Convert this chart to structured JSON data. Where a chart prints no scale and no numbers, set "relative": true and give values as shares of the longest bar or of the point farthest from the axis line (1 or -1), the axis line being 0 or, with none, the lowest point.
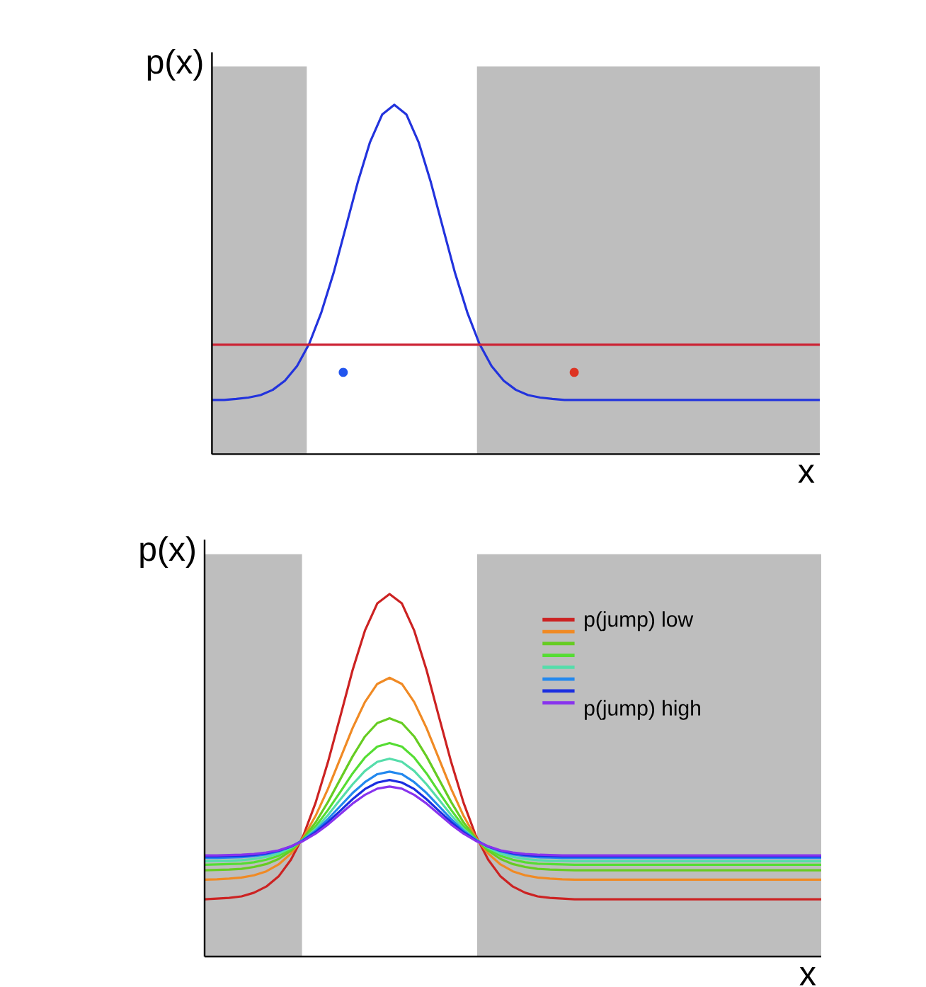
{
  "chart_data": [
    {
      "type": "line",
      "ylabel": "p(x)",
      "xlabel": "x",
      "relative": true,
      "tick_labels": false,
      "categories": [
        null,
        null,
        null,
        null,
        null,
        null,
        null,
        null,
        null,
        null,
        null,
        null,
        null,
        null,
        null,
        null,
        null,
        null,
        null,
        null,
        null,
        null,
        null,
        null,
        null,
        null,
        null,
        null,
        null,
        null,
        null,
        null,
        null,
        null,
        null,
        null,
        null,
        null,
        null,
        null,
        null,
        null,
        null,
        null,
        null,
        null,
        null,
        null,
        null,
        null,
        null
      ],
      "series": [
        {
          "type": "line",
          "color": "#2233dd",
          "values": [
            0.155,
            0.155,
            0.158,
            0.162,
            0.169,
            0.184,
            0.21,
            0.252,
            0.316,
            0.406,
            0.518,
            0.648,
            0.779,
            0.893,
            0.972,
            1,
            0.972,
            0.893,
            0.779,
            0.648,
            0.518,
            0.406,
            0.316,
            0.252,
            0.21,
            0.184,
            0.169,
            0.162,
            0.158,
            0.155,
            0.155,
            0.155,
            0.155,
            0.155,
            0.155,
            0.155,
            0.155,
            0.155,
            0.155,
            0.155,
            0.155,
            0.155,
            0.155,
            0.155,
            0.155,
            0.155,
            0.155,
            0.155,
            0.155,
            0.155,
            0.155
          ]
        },
        {
          "type": "line",
          "color": "#cc2233",
          "values": [
            0.313,
            0.313,
            0.313,
            0.313,
            0.313,
            0.313,
            0.313,
            0.313,
            0.313,
            0.313,
            0.313,
            0.313,
            0.313,
            0.313,
            0.313,
            0.313,
            0.313,
            0.313,
            0.313,
            0.313,
            0.313,
            0.313,
            0.313,
            0.313,
            0.313,
            0.313,
            0.313,
            0.313,
            0.313,
            0.313,
            0.313,
            0.313,
            0.313,
            0.313,
            0.313,
            0.313,
            0.313,
            0.313,
            0.313,
            0.313,
            0.313,
            0.313,
            0.313,
            0.313,
            0.313,
            0.313,
            0.313,
            0.313,
            0.313,
            0.313,
            0.313
          ]
        }
      ]
    },
    {
      "type": "line",
      "ylabel": "p(x)",
      "xlabel": "x",
      "relative": true,
      "tick_labels": false,
      "legend": "top right",
      "categories": [
        null,
        null,
        null,
        null,
        null,
        null,
        null,
        null,
        null,
        null,
        null,
        null,
        null,
        null,
        null,
        null,
        null,
        null,
        null,
        null,
        null,
        null,
        null,
        null,
        null,
        null,
        null,
        null,
        null,
        null,
        null,
        null,
        null,
        null,
        null,
        null,
        null,
        null,
        null,
        null,
        null,
        null,
        null,
        null,
        null,
        null,
        null,
        null,
        null,
        null,
        null
      ],
      "series": [
        {
          "name": "p(jump) low",
          "color": "#cc2222",
          "values": [
            0.158,
            0.16,
            0.162,
            0.166,
            0.176,
            0.193,
            0.221,
            0.267,
            0.333,
            0.424,
            0.536,
            0.662,
            0.79,
            0.899,
            0.974,
            1,
            0.974,
            0.899,
            0.79,
            0.662,
            0.536,
            0.424,
            0.333,
            0.267,
            0.221,
            0.193,
            0.176,
            0.166,
            0.162,
            0.16,
            0.158,
            0.158,
            0.158,
            0.158,
            0.158,
            0.158,
            0.158,
            0.158,
            0.158,
            0.158,
            0.158,
            0.158,
            0.158,
            0.158,
            0.158,
            0.158,
            0.158,
            0.158,
            0.158,
            0.158,
            0.158
          ]
        },
        {
          "color": "#f08a24",
          "values": [
            0.212,
            0.213,
            0.215,
            0.218,
            0.224,
            0.235,
            0.254,
            0.284,
            0.328,
            0.388,
            0.462,
            0.546,
            0.63,
            0.702,
            0.752,
            0.769,
            0.752,
            0.702,
            0.63,
            0.546,
            0.462,
            0.388,
            0.328,
            0.284,
            0.254,
            0.235,
            0.224,
            0.218,
            0.215,
            0.213,
            0.212,
            0.212,
            0.212,
            0.212,
            0.212,
            0.212,
            0.212,
            0.212,
            0.212,
            0.212,
            0.212,
            0.212,
            0.212,
            0.212,
            0.212,
            0.212,
            0.212,
            0.212,
            0.212,
            0.212,
            0.212
          ]
        },
        {
          "color": "#66cc22",
          "values": [
            0.238,
            0.239,
            0.24,
            0.242,
            0.247,
            0.255,
            0.269,
            0.292,
            0.325,
            0.37,
            0.426,
            0.489,
            0.552,
            0.607,
            0.644,
            0.657,
            0.644,
            0.607,
            0.552,
            0.489,
            0.426,
            0.37,
            0.325,
            0.292,
            0.269,
            0.255,
            0.247,
            0.242,
            0.24,
            0.239,
            0.238,
            0.238,
            0.238,
            0.238,
            0.238,
            0.238,
            0.238,
            0.238,
            0.238,
            0.238,
            0.238,
            0.238,
            0.238,
            0.238,
            0.238,
            0.238,
            0.238,
            0.238,
            0.238,
            0.238,
            0.238
          ]
        },
        {
          "color": "#55dd33",
          "values": [
            0.253,
            0.254,
            0.255,
            0.256,
            0.26,
            0.267,
            0.278,
            0.296,
            0.323,
            0.359,
            0.404,
            0.454,
            0.505,
            0.549,
            0.579,
            0.589,
            0.579,
            0.549,
            0.505,
            0.454,
            0.404,
            0.359,
            0.323,
            0.296,
            0.278,
            0.267,
            0.26,
            0.256,
            0.255,
            0.254,
            0.253,
            0.253,
            0.253,
            0.253,
            0.253,
            0.253,
            0.253,
            0.253,
            0.253,
            0.253,
            0.253,
            0.253,
            0.253,
            0.253,
            0.253,
            0.253,
            0.253,
            0.253,
            0.253,
            0.253,
            0.253
          ]
        },
        {
          "color": "#55ddaa",
          "values": [
            0.263,
            0.264,
            0.264,
            0.266,
            0.269,
            0.275,
            0.284,
            0.3,
            0.322,
            0.352,
            0.39,
            0.433,
            0.475,
            0.512,
            0.537,
            0.546,
            0.537,
            0.512,
            0.475,
            0.433,
            0.39,
            0.352,
            0.322,
            0.3,
            0.284,
            0.275,
            0.269,
            0.266,
            0.264,
            0.264,
            0.263,
            0.263,
            0.263,
            0.263,
            0.263,
            0.263,
            0.263,
            0.263,
            0.263,
            0.263,
            0.263,
            0.263,
            0.263,
            0.263,
            0.263,
            0.263,
            0.263,
            0.263,
            0.263,
            0.263,
            0.263
          ]
        },
        {
          "color": "#2288ee",
          "values": [
            0.272,
            0.272,
            0.273,
            0.274,
            0.277,
            0.282,
            0.29,
            0.303,
            0.322,
            0.347,
            0.379,
            0.415,
            0.451,
            0.481,
            0.503,
            0.51,
            0.503,
            0.481,
            0.451,
            0.415,
            0.379,
            0.347,
            0.322,
            0.303,
            0.29,
            0.282,
            0.277,
            0.274,
            0.273,
            0.272,
            0.272,
            0.272,
            0.272,
            0.272,
            0.272,
            0.272,
            0.272,
            0.272,
            0.272,
            0.272,
            0.272,
            0.272,
            0.272,
            0.272,
            0.272,
            0.272,
            0.272,
            0.272,
            0.272,
            0.272,
            0.272
          ]
        },
        {
          "color": "#1a2ee0",
          "values": [
            0.276,
            0.276,
            0.277,
            0.278,
            0.28,
            0.285,
            0.292,
            0.303,
            0.32,
            0.343,
            0.371,
            0.402,
            0.434,
            0.462,
            0.48,
            0.487,
            0.48,
            0.462,
            0.434,
            0.402,
            0.371,
            0.343,
            0.32,
            0.303,
            0.292,
            0.285,
            0.28,
            0.278,
            0.277,
            0.276,
            0.276,
            0.276,
            0.276,
            0.276,
            0.276,
            0.276,
            0.276,
            0.276,
            0.276,
            0.276,
            0.276,
            0.276,
            0.276,
            0.276,
            0.276,
            0.276,
            0.276,
            0.276,
            0.276,
            0.276,
            0.276
          ]
        },
        {
          "name": "p(jump) high",
          "color": "#8833ee",
          "values": [
            0.279,
            0.279,
            0.28,
            0.281,
            0.283,
            0.287,
            0.293,
            0.304,
            0.319,
            0.339,
            0.364,
            0.393,
            0.422,
            0.446,
            0.463,
            0.469,
            0.463,
            0.446,
            0.422,
            0.393,
            0.364,
            0.339,
            0.319,
            0.304,
            0.293,
            0.287,
            0.283,
            0.281,
            0.28,
            0.279,
            0.279,
            0.279,
            0.279,
            0.279,
            0.279,
            0.279,
            0.279,
            0.279,
            0.279,
            0.279,
            0.279,
            0.279,
            0.279,
            0.279,
            0.279,
            0.279,
            0.279,
            0.279,
            0.279,
            0.279,
            0.279
          ]
        }
      ]
    }
  ]
}
